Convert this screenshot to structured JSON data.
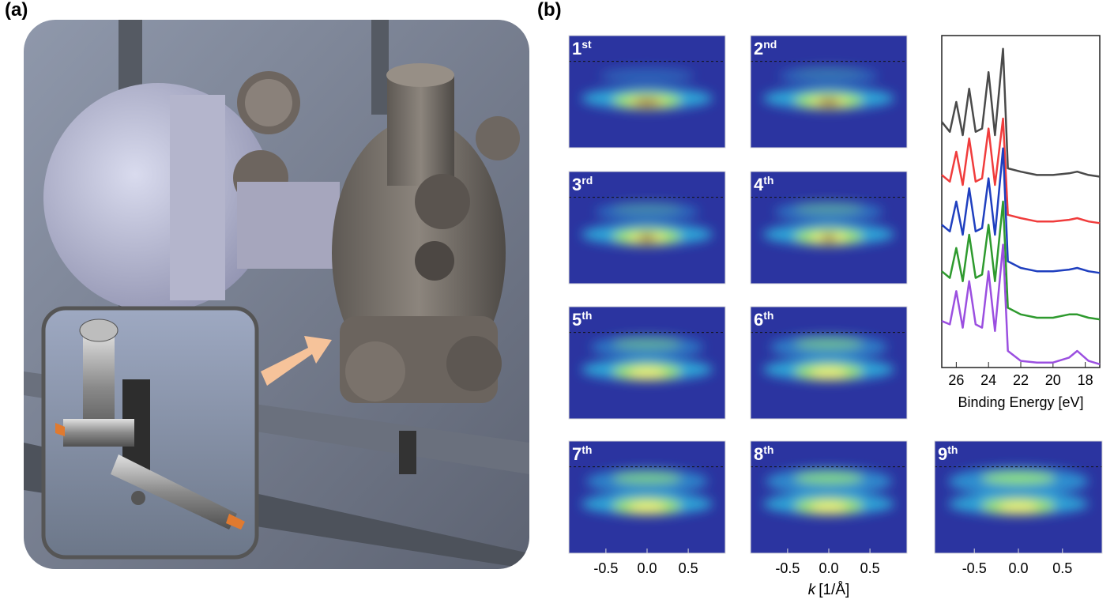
{
  "panel_a": {
    "label": "(a)"
  },
  "panel_b": {
    "label": "(b)",
    "maps": [
      {
        "num": "1",
        "sup": "st"
      },
      {
        "num": "2",
        "sup": "nd"
      },
      {
        "num": "3",
        "sup": "rd"
      },
      {
        "num": "4",
        "sup": "th"
      },
      {
        "num": "5",
        "sup": "th"
      },
      {
        "num": "6",
        "sup": "th"
      },
      {
        "num": "7",
        "sup": "th"
      },
      {
        "num": "8",
        "sup": "th"
      },
      {
        "num": "9",
        "sup": "th"
      }
    ],
    "k_axis": {
      "symbol": "k",
      "unit": "[1/Å]",
      "lim": [
        -0.95,
        0.95
      ],
      "ticks": [
        -0.5,
        {
          "value": 0,
          "label": "0.0"
        },
        0.5
      ]
    }
  },
  "chart_data": {
    "type": "line",
    "xlabel": "Binding Energy [eV]",
    "xlim": [
      26.9,
      17.1
    ],
    "ylim": [
      0,
      10
    ],
    "xticks": [
      26,
      24,
      22,
      20,
      18
    ],
    "x": [
      26.9,
      26.4,
      26.0,
      25.6,
      25.2,
      24.8,
      24.4,
      24.0,
      23.6,
      23.1,
      22.8,
      22.0,
      21.0,
      20.0,
      19.0,
      18.5,
      17.8,
      17.1
    ],
    "series": [
      {
        "color": "#4a4a4a",
        "values": [
          7.4,
          7.1,
          8.0,
          7.0,
          8.4,
          7.1,
          7.2,
          8.9,
          7.0,
          9.6,
          6.0,
          5.9,
          5.8,
          5.8,
          5.85,
          5.9,
          5.8,
          5.75
        ]
      },
      {
        "color": "#f03c3c",
        "values": [
          5.8,
          5.6,
          6.5,
          5.5,
          6.9,
          5.6,
          5.7,
          7.2,
          5.5,
          7.5,
          4.6,
          4.5,
          4.4,
          4.4,
          4.45,
          4.5,
          4.4,
          4.35
        ]
      },
      {
        "color": "#1f3fbf",
        "values": [
          4.3,
          4.1,
          5.0,
          4.0,
          5.4,
          4.1,
          4.2,
          5.7,
          4.0,
          6.6,
          3.2,
          3.0,
          2.9,
          2.9,
          2.95,
          3.0,
          2.9,
          2.85
        ]
      },
      {
        "color": "#2e9a2e",
        "values": [
          2.9,
          2.7,
          3.6,
          2.6,
          4.0,
          2.7,
          2.8,
          4.3,
          2.6,
          5.0,
          1.8,
          1.6,
          1.5,
          1.5,
          1.6,
          1.6,
          1.5,
          1.45
        ]
      },
      {
        "color": "#9b4fe0",
        "values": [
          1.4,
          1.3,
          2.3,
          1.2,
          2.6,
          1.3,
          1.2,
          2.9,
          1.1,
          3.7,
          0.5,
          0.2,
          0.15,
          0.15,
          0.3,
          0.5,
          0.2,
          0.1
        ]
      }
    ]
  }
}
